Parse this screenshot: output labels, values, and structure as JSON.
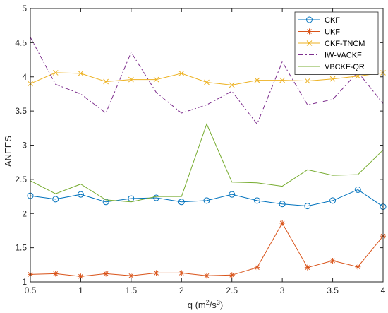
{
  "chart_data": {
    "type": "line",
    "title": "",
    "xlabel_main": "q (m",
    "xlabel_sup1": "2",
    "xlabel_mid": "/s",
    "xlabel_sup2": "3",
    "xlabel_end": ")",
    "ylabel": "ANEES",
    "xlim": [
      0.5,
      4
    ],
    "ylim": [
      1,
      5
    ],
    "xticks": [
      "0.5",
      "1",
      "1.5",
      "2",
      "2.5",
      "3",
      "3.5",
      "4"
    ],
    "yticks": [
      "1",
      "1.5",
      "2",
      "2.5",
      "3",
      "3.5",
      "4",
      "4.5",
      "5"
    ],
    "grid": false,
    "legend_position": "top-right",
    "x": [
      0.5,
      0.75,
      1,
      1.25,
      1.5,
      1.75,
      2,
      2.25,
      2.5,
      2.75,
      3,
      3.25,
      3.5,
      3.75,
      4
    ],
    "series": [
      {
        "name": "CKF",
        "color": "#0072BD",
        "marker": "circle",
        "dash": "",
        "values": [
          2.26,
          2.21,
          2.28,
          2.17,
          2.22,
          2.23,
          2.17,
          2.19,
          2.28,
          2.19,
          2.14,
          2.11,
          2.19,
          2.35,
          2.1
        ]
      },
      {
        "name": "UKF",
        "color": "#D95319",
        "marker": "asterisk",
        "dash": "",
        "values": [
          1.11,
          1.12,
          1.08,
          1.12,
          1.09,
          1.13,
          1.13,
          1.09,
          1.1,
          1.21,
          1.86,
          1.21,
          1.31,
          1.22,
          1.67
        ]
      },
      {
        "name": "CKF-TNCM",
        "color": "#EDB120",
        "marker": "x",
        "dash": "",
        "values": [
          3.9,
          4.06,
          4.05,
          3.93,
          3.96,
          3.96,
          4.05,
          3.92,
          3.88,
          3.95,
          3.95,
          3.94,
          3.97,
          4.01,
          4.06
        ]
      },
      {
        "name": "IW-VACKF",
        "color": "#7E2F8E",
        "marker": "none",
        "dash": "7,3,2,3",
        "values": [
          4.58,
          3.89,
          3.75,
          3.47,
          4.36,
          3.77,
          3.47,
          3.59,
          3.79,
          3.31,
          4.22,
          3.59,
          3.67,
          4.07,
          3.61
        ]
      },
      {
        "name": "VBCKF-QR",
        "color": "#77AC30",
        "marker": "none",
        "dash": "",
        "values": [
          2.48,
          2.29,
          2.43,
          2.2,
          2.17,
          2.25,
          2.25,
          3.31,
          2.46,
          2.45,
          2.4,
          2.64,
          2.56,
          2.57,
          2.93
        ]
      }
    ]
  }
}
